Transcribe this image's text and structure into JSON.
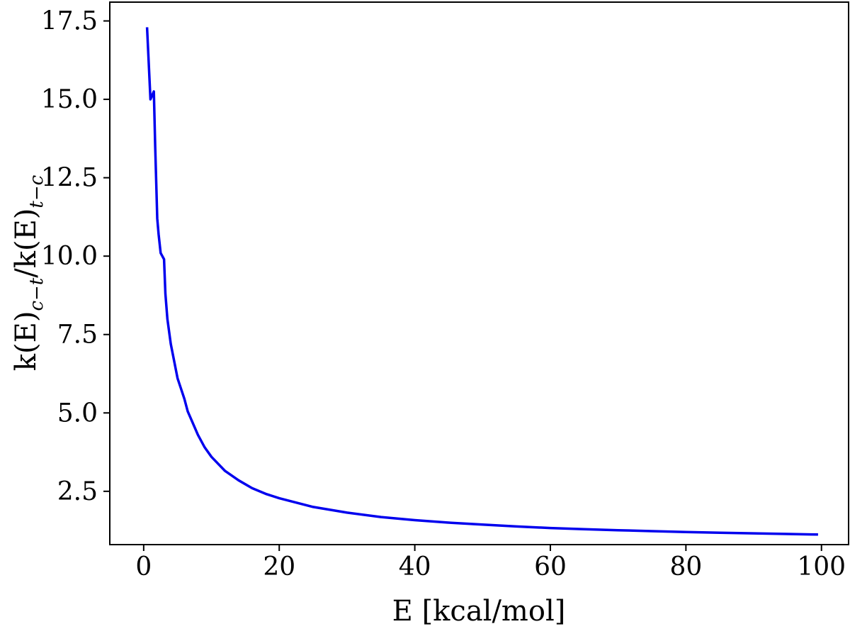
{
  "chart_data": {
    "type": "line",
    "title": "",
    "xlabel": "E [kcal/mol]",
    "ylabel": {
      "prefix": "k(E)",
      "sub1": "c−t",
      "middle": "/k(E)",
      "sub2": "t−c"
    },
    "xlim": [
      -5,
      104
    ],
    "ylim": [
      0.8,
      18.1
    ],
    "xticks": [
      0,
      20,
      40,
      60,
      80,
      100
    ],
    "xtick_labels": [
      "0",
      "20",
      "40",
      "60",
      "80",
      "100"
    ],
    "yticks": [
      2.5,
      5.0,
      7.5,
      10.0,
      12.5,
      15.0,
      17.5
    ],
    "ytick_labels": [
      "2.5",
      "5.0",
      "7.5",
      "10.0",
      "12.5",
      "15.0",
      "17.5"
    ],
    "grid": false,
    "series": [
      {
        "color": "#0000ee",
        "x": [
          0.5,
          1.0,
          1.2,
          1.5,
          1.7,
          2.0,
          2.2,
          2.5,
          3.0,
          3.2,
          3.5,
          4.0,
          5.0,
          6.0,
          6.5,
          7.0,
          8.0,
          9.0,
          10.0,
          12.0,
          14.0,
          16.0,
          18.0,
          20.0,
          25.0,
          30.0,
          35.0,
          40.0,
          45.0,
          50.0,
          55.0,
          60.0,
          65.0,
          70.0,
          75.0,
          80.0,
          85.0,
          90.0,
          95.0,
          99.5
        ],
        "y": [
          17.3,
          15.0,
          15.1,
          15.25,
          13.5,
          11.2,
          10.7,
          10.1,
          9.9,
          8.8,
          8.0,
          7.2,
          6.1,
          5.45,
          5.05,
          4.8,
          4.3,
          3.9,
          3.6,
          3.15,
          2.85,
          2.6,
          2.42,
          2.28,
          2.0,
          1.82,
          1.68,
          1.58,
          1.5,
          1.44,
          1.38,
          1.33,
          1.29,
          1.26,
          1.23,
          1.2,
          1.18,
          1.16,
          1.14,
          1.12
        ]
      }
    ]
  }
}
